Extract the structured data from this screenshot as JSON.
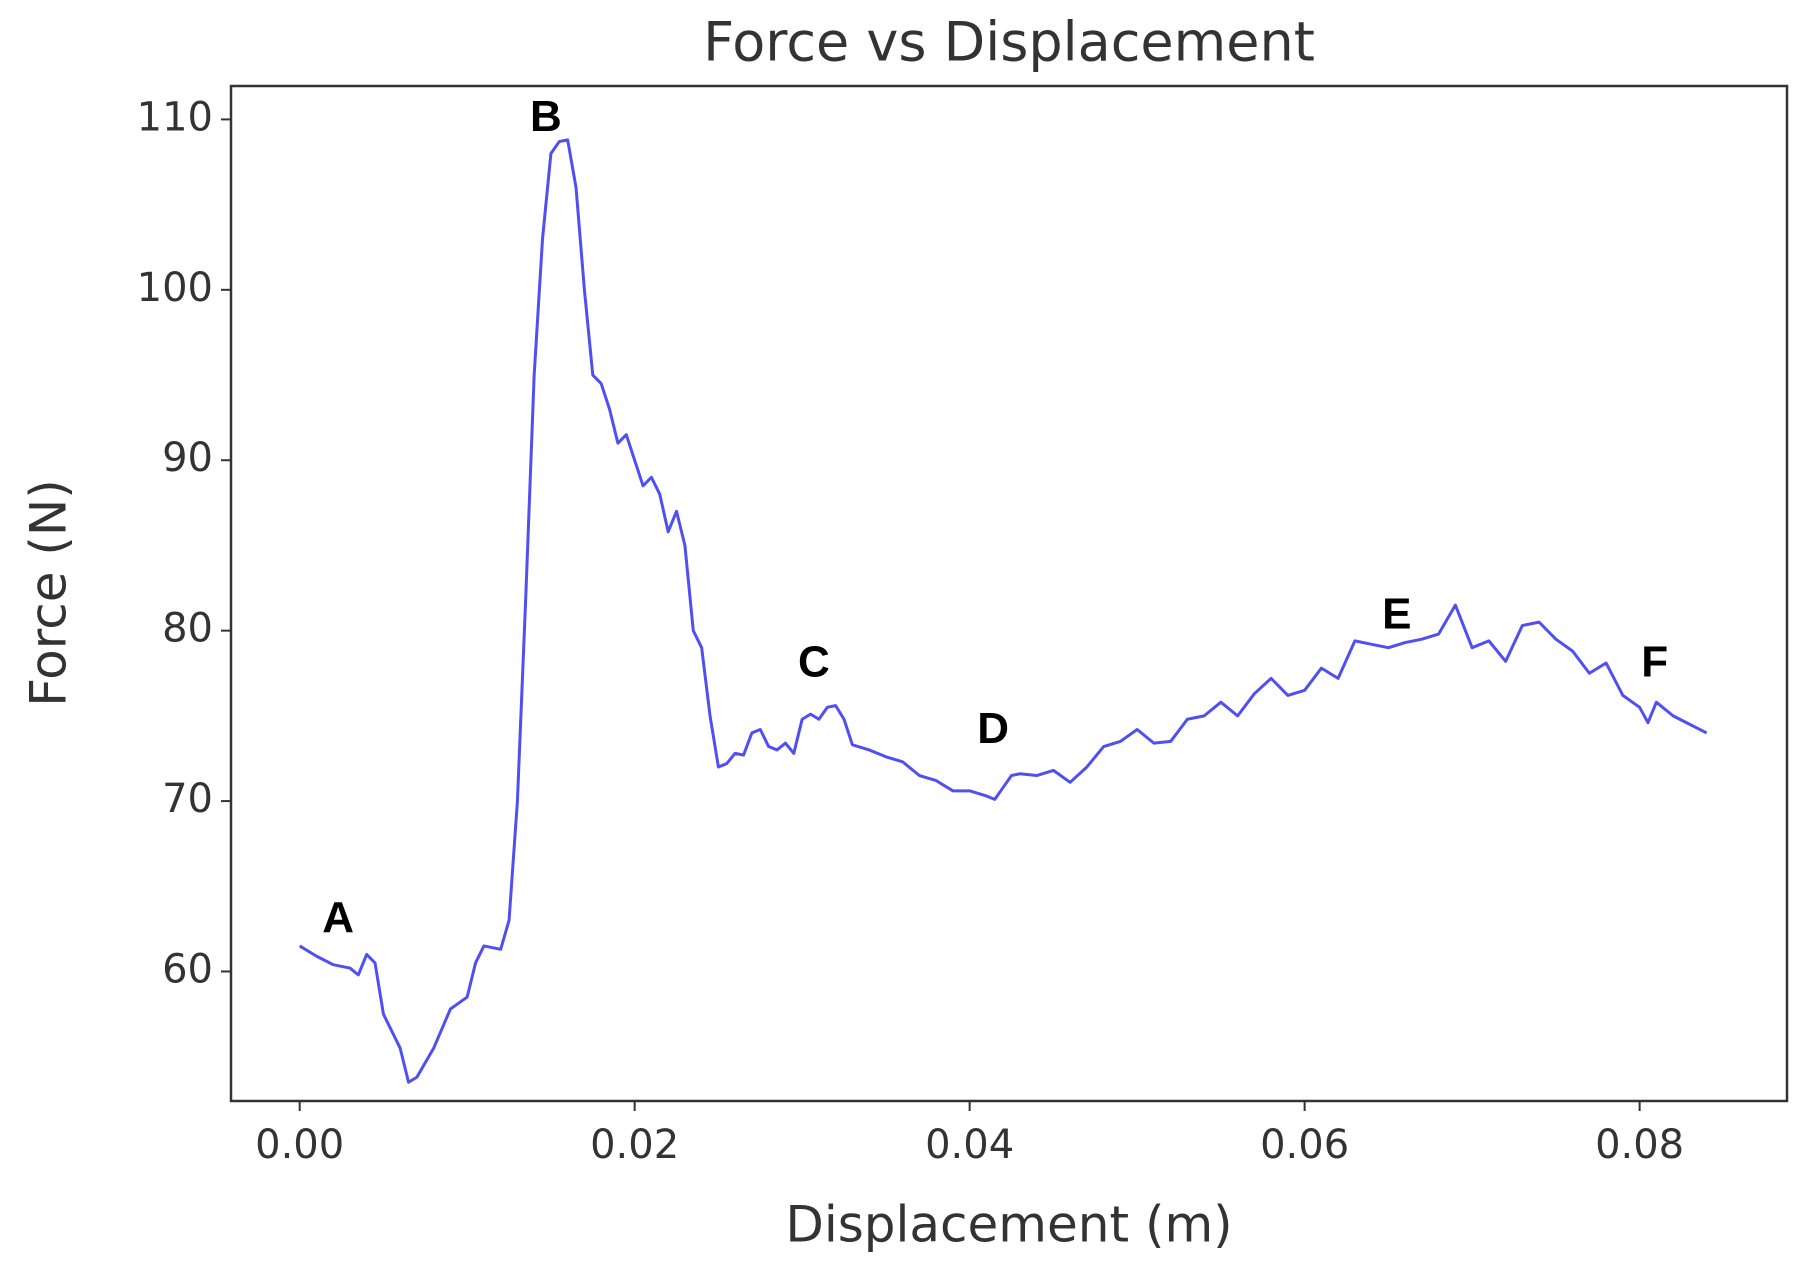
{
  "chart_data": {
    "type": "line",
    "title": "Force vs Displacement",
    "x_label": "Displacement (m)",
    "y_label": "Force (N)",
    "x": [
      0,
      0.001,
      0.002,
      0.003,
      0.0035,
      0.004,
      0.0045,
      0.005,
      0.0055,
      0.006,
      0.0065,
      0.007,
      0.008,
      0.009,
      0.01,
      0.0105,
      0.011,
      0.012,
      0.0125,
      0.013,
      0.0135,
      0.014,
      0.0145,
      0.015,
      0.0155,
      0.016,
      0.0165,
      0.017,
      0.0175,
      0.018,
      0.0185,
      0.019,
      0.0195,
      0.02,
      0.0205,
      0.021,
      0.0215,
      0.022,
      0.0225,
      0.023,
      0.0235,
      0.024,
      0.0245,
      0.025,
      0.0255,
      0.026,
      0.0265,
      0.027,
      0.0275,
      0.028,
      0.0285,
      0.029,
      0.0295,
      0.03,
      0.0305,
      0.031,
      0.0315,
      0.032,
      0.0325,
      0.033,
      0.034,
      0.035,
      0.036,
      0.037,
      0.038,
      0.039,
      0.04,
      0.041,
      0.0415,
      0.042,
      0.0425,
      0.043,
      0.044,
      0.045,
      0.046,
      0.047,
      0.048,
      0.049,
      0.05,
      0.051,
      0.052,
      0.053,
      0.054,
      0.055,
      0.056,
      0.057,
      0.058,
      0.059,
      0.06,
      0.061,
      0.062,
      0.063,
      0.064,
      0.065,
      0.066,
      0.067,
      0.068,
      0.069,
      0.07,
      0.071,
      0.072,
      0.073,
      0.074,
      0.075,
      0.076,
      0.077,
      0.078,
      0.079,
      0.08,
      0.0805,
      0.081,
      0.082,
      0.083,
      0.084
    ],
    "series": [
      {
        "color": "#4f4ff2",
        "values": [
          61.5,
          60.9,
          60.4,
          60.2,
          59.8,
          61.0,
          60.5,
          57.5,
          56.5,
          55.5,
          53.5,
          53.8,
          55.5,
          57.8,
          58.5,
          60.5,
          61.5,
          61.3,
          63,
          70,
          82,
          95,
          103,
          108,
          108.7,
          108.8,
          106,
          100,
          95,
          94.5,
          93,
          91,
          91.5,
          90,
          88.5,
          89,
          88,
          85.8,
          87,
          85,
          80,
          79,
          75,
          72,
          72.2,
          72.8,
          72.7,
          74,
          74.2,
          73.2,
          73,
          73.4,
          72.8,
          74.8,
          75.1,
          74.8,
          75.5,
          75.6,
          74.8,
          73.3,
          73,
          72.6,
          72.3,
          71.5,
          71.2,
          70.6,
          70.6,
          70.3,
          70.1,
          70.8,
          71.5,
          71.6,
          71.5,
          71.8,
          71.1,
          72,
          73.2,
          73.5,
          74.2,
          73.4,
          73.5,
          74.8,
          75,
          75.8,
          75,
          76.3,
          77.2,
          76.2,
          76.5,
          77.8,
          77.2,
          79.4,
          79.2,
          79,
          79.3,
          79.5,
          79.8,
          81.5,
          79,
          79.4,
          78.2,
          80.3,
          80.5,
          79.5,
          78.8,
          77.5,
          78.1,
          76.2,
          75.5,
          74.6,
          75.8,
          75,
          74.5,
          74.0
        ]
      }
    ],
    "xlim": [
      -0.0041,
      0.0888
    ],
    "ylim": [
      52.4,
      111.96
    ],
    "xticks": [
      {
        "value": 0,
        "label": "0.00"
      },
      {
        "value": 0.02,
        "label": "0.02"
      },
      {
        "value": 0.04,
        "label": "0.04"
      },
      {
        "value": 0.06,
        "label": "0.06"
      },
      {
        "value": 0.08,
        "label": "0.08"
      }
    ],
    "yticks": [
      60,
      70,
      80,
      90,
      100,
      110
    ],
    "annotations": [
      {
        "text": "A",
        "x": 0.0023,
        "y": 63.0
      },
      {
        "text": "B",
        "x": 0.0147,
        "y": 110
      },
      {
        "text": "C",
        "x": 0.0307,
        "y": 78.0
      },
      {
        "text": "D",
        "x": 0.0414,
        "y": 74.1
      },
      {
        "text": "E",
        "x": 0.0655,
        "y": 80.8
      },
      {
        "text": "F",
        "x": 0.0809,
        "y": 78.0
      }
    ]
  }
}
